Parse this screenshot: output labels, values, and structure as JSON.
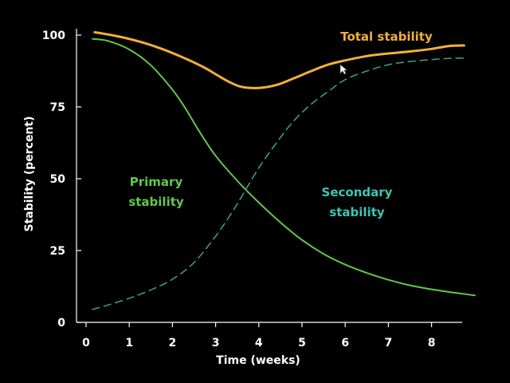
{
  "chart_data": {
    "type": "line",
    "xlabel": "Time (weeks)",
    "ylabel": "Stability (percent)",
    "xlim": [
      0,
      8.8
    ],
    "ylim": [
      0,
      100
    ],
    "x_ticks": [
      "0",
      "1",
      "2",
      "3",
      "4",
      "5",
      "6",
      "7",
      "8"
    ],
    "y_ticks": [
      "0",
      "25",
      "50",
      "75",
      "100"
    ],
    "grid": false,
    "series": [
      {
        "name": "Total stability",
        "color": "#f0b03a",
        "style": "solid",
        "x": [
          0.2,
          0.7,
          1.2,
          1.7,
          2.2,
          2.7,
          3.0,
          3.3,
          3.6,
          4.0,
          4.4,
          4.8,
          5.2,
          5.6,
          6.0,
          6.5,
          7.0,
          7.5,
          8.0,
          8.4,
          8.75
        ],
        "y": [
          101,
          99.7,
          97.9,
          95.5,
          92.5,
          89,
          86.4,
          83.8,
          82,
          81.6,
          82.6,
          84.9,
          87.4,
          89.7,
          91.2,
          92.7,
          93.6,
          94.3,
          95.2,
          96.2,
          96.4
        ]
      },
      {
        "name": "Primary stability",
        "color": "#5fc94a",
        "style": "solid",
        "x": [
          0.15,
          0.5,
          1.0,
          1.5,
          2.0,
          2.3,
          2.6,
          3.0,
          3.5,
          4.0,
          4.5,
          5.0,
          5.5,
          6.0,
          6.5,
          7.0,
          7.5,
          8.0,
          8.5,
          9.0
        ],
        "y": [
          98.7,
          98,
          95,
          89.5,
          81,
          74.5,
          67,
          58,
          49.3,
          41.7,
          34.8,
          28.7,
          23.8,
          20.1,
          17.2,
          14.8,
          12.9,
          11.5,
          10.4,
          9.4
        ]
      },
      {
        "name": "Secondary stability",
        "color": "#3a9a84",
        "style": "dashed",
        "x": [
          0.15,
          0.5,
          1.0,
          1.5,
          2.0,
          2.5,
          3.0,
          3.3,
          3.6,
          4.0,
          4.4,
          4.8,
          5.2,
          5.6,
          6.0,
          6.5,
          7.0,
          7.5,
          8.0,
          8.4,
          8.75
        ],
        "y": [
          4.5,
          6,
          8.4,
          11.3,
          15,
          20.8,
          30,
          36.5,
          43.7,
          53.8,
          62.3,
          70,
          75.8,
          80.3,
          84.5,
          87.5,
          89.7,
          90.8,
          91.5,
          91.9,
          92
        ]
      }
    ],
    "labels": {
      "total": {
        "text": "Total stability",
        "color": "#f0b03a"
      },
      "primary": {
        "lines": [
          "Primary",
          "stability"
        ],
        "color": "#5fc94a"
      },
      "secondary": {
        "lines": [
          "Secondary",
          "stability"
        ],
        "color": "#40c4b4"
      }
    }
  }
}
